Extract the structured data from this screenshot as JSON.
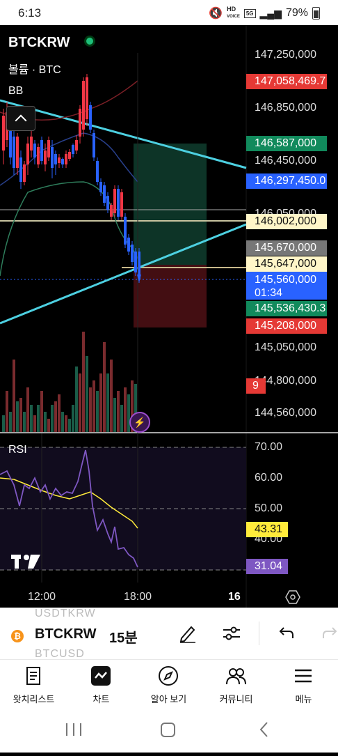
{
  "status_bar": {
    "time": "6:13",
    "network_top": "HD",
    "network_bottom": "VOICE",
    "network_5g": "5G",
    "battery": "79%"
  },
  "chart": {
    "symbol": "BTCKRW",
    "volume_label": "볼륨 · BTC",
    "bb_label": "BB",
    "price_axis": [
      "147,250,000",
      "146,850,000",
      "146,450,000",
      "146,050,000",
      "145,050,000",
      "144,800,000",
      "144,560,000"
    ],
    "price_tags": {
      "bb_upper": "147,058,469.7",
      "tp": "146,587,000",
      "bb_mid": "146,297,450.0",
      "hline": "146,002,000",
      "gray": "145,670,000",
      "entry": "145,647,000",
      "last": "145,560,000",
      "countdown": "01:34",
      "bb_lower": "145,536,430.3",
      "sl": "145,208,000",
      "volume": "9"
    },
    "rsi_label": "RSI",
    "rsi_axis": [
      "70.00",
      "60.00",
      "50.00",
      "40.00"
    ],
    "rsi_ma_tag": "43.31",
    "rsi_tag": "31.04",
    "time_axis": [
      "12:00",
      "18:00",
      "16"
    ],
    "colors": {
      "up": "#f23645",
      "down": "#2962ff",
      "bb": "#2e7d5b",
      "trend": "#4dd0e1",
      "rsi": "#7e57c2",
      "rsi_ma": "#ffeb3b"
    }
  },
  "toolbar": {
    "ghost_top": "USDTKRW",
    "symbol": "BTCKRW",
    "interval": "15분",
    "ghost_bottom": "BTCUSD"
  },
  "nav": {
    "watchlist": "왓치리스트",
    "chart": "차트",
    "ideas": "알아 보기",
    "community": "커뮤니티",
    "menu": "메뉴"
  }
}
